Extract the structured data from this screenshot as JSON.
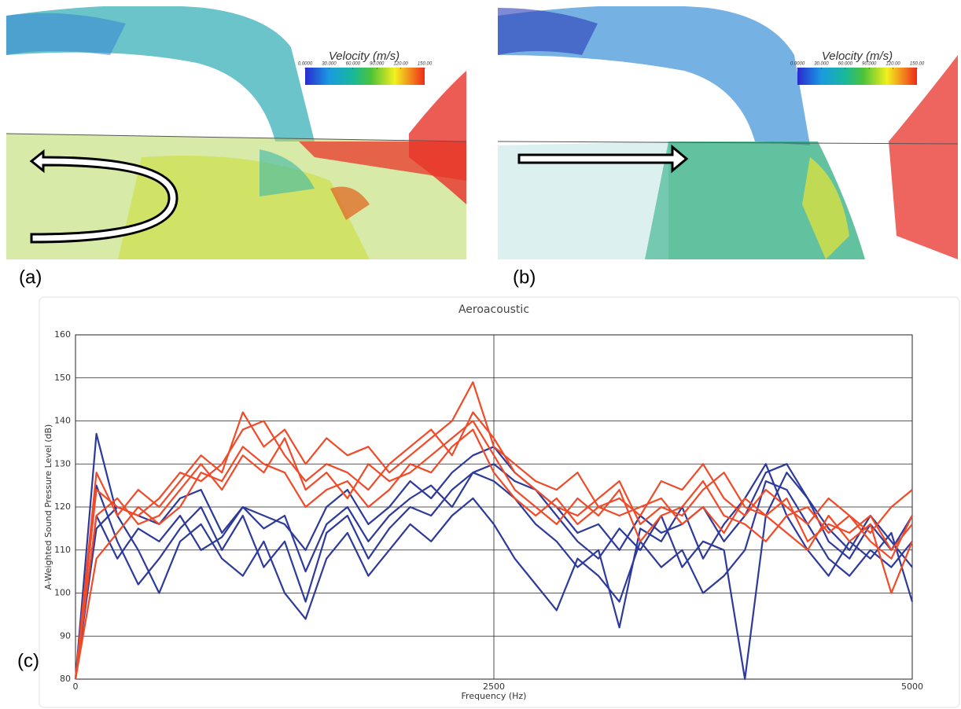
{
  "panels": [
    {
      "label": "(a)",
      "colorbar": {
        "title": "Velocity (m/s)",
        "ticks": [
          {
            "value": 0,
            "label": "0.0000"
          },
          {
            "value": 30,
            "label": "30.000"
          },
          {
            "value": 60,
            "label": "60.000"
          },
          {
            "value": 90,
            "label": "90.000"
          },
          {
            "value": 120,
            "label": "120.00"
          },
          {
            "value": 150,
            "label": "150.00"
          }
        ]
      }
    },
    {
      "label": "(b)",
      "colorbar": {
        "title": "Velocity (m/s)",
        "ticks": [
          {
            "value": 0,
            "label": "0.0000"
          },
          {
            "value": 30,
            "label": "30.000"
          },
          {
            "value": 60,
            "label": "60.000"
          },
          {
            "value": 90,
            "label": "90.000"
          },
          {
            "value": 120,
            "label": "120.00"
          },
          {
            "value": 150,
            "label": "150.00"
          }
        ]
      }
    }
  ],
  "chart_data": {
    "type": "line",
    "label": "(c)",
    "title": "Aeroacoustic",
    "x_label": "Frequency (Hz)",
    "y_label": "A-Weighted Sound Pressure Level (dB)",
    "x": [
      0,
      125,
      250,
      375,
      500,
      625,
      750,
      875,
      1000,
      1125,
      1250,
      1375,
      1500,
      1625,
      1750,
      1875,
      2000,
      2125,
      2250,
      2375,
      2500,
      2625,
      2750,
      2875,
      3000,
      3125,
      3250,
      3375,
      3500,
      3625,
      3750,
      3875,
      4000,
      4125,
      4250,
      4375,
      4500,
      4625,
      4750,
      4875,
      5000
    ],
    "series": [
      {
        "color": "#2d3a9c",
        "values": [
          80,
          118,
          108,
          115,
          112,
          118,
          110,
          113,
          120,
          115,
          118,
          105,
          116,
          120,
          112,
          118,
          122,
          125,
          120,
          128,
          130,
          126,
          124,
          118,
          112,
          108,
          115,
          110,
          118,
          106,
          112,
          110,
          80,
          118,
          128,
          122,
          115,
          110,
          118,
          112,
          106
        ]
      },
      {
        "color": "#2d3a9c",
        "values": [
          80,
          125,
          112,
          102,
          108,
          115,
          120,
          110,
          118,
          106,
          112,
          98,
          114,
          118,
          108,
          115,
          120,
          118,
          124,
          128,
          126,
          122,
          116,
          112,
          106,
          110,
          92,
          115,
          112,
          120,
          108,
          116,
          122,
          130,
          118,
          110,
          104,
          112,
          108,
          114,
          98
        ]
      },
      {
        "color": "#2d3a9c",
        "values": [
          80,
          137,
          118,
          110,
          100,
          112,
          116,
          108,
          104,
          112,
          100,
          94,
          108,
          114,
          104,
          110,
          116,
          112,
          118,
          122,
          116,
          108,
          102,
          96,
          108,
          104,
          98,
          112,
          106,
          110,
          100,
          104,
          110,
          126,
          124,
          116,
          108,
          104,
          110,
          106,
          112
        ]
      },
      {
        "color": "#2d3a9c",
        "values": [
          80,
          115,
          120,
          118,
          116,
          122,
          124,
          114,
          120,
          118,
          116,
          110,
          120,
          124,
          116,
          120,
          126,
          122,
          128,
          132,
          134,
          128,
          124,
          120,
          114,
          116,
          110,
          118,
          114,
          116,
          120,
          112,
          118,
          128,
          130,
          122,
          112,
          108,
          116,
          110,
          118
        ]
      },
      {
        "color": "#f04a28",
        "values": [
          80,
          128,
          118,
          124,
          120,
          126,
          132,
          128,
          142,
          134,
          138,
          130,
          136,
          132,
          134,
          128,
          132,
          136,
          140,
          149,
          134,
          130,
          126,
          124,
          128,
          120,
          122,
          118,
          126,
          124,
          130,
          122,
          118,
          124,
          120,
          116,
          122,
          118,
          114,
          120,
          124
        ]
      },
      {
        "color": "#f04a28",
        "values": [
          80,
          124,
          120,
          118,
          122,
          128,
          126,
          130,
          138,
          140,
          132,
          126,
          130,
          128,
          124,
          130,
          134,
          138,
          132,
          142,
          136,
          128,
          124,
          120,
          118,
          122,
          126,
          116,
          120,
          118,
          124,
          128,
          120,
          118,
          122,
          112,
          116,
          114,
          118,
          110,
          116
        ]
      },
      {
        "color": "#f04a28",
        "values": [
          80,
          118,
          122,
          116,
          118,
          124,
          130,
          124,
          132,
          128,
          136,
          124,
          128,
          122,
          130,
          126,
          128,
          132,
          136,
          140,
          132,
          124,
          120,
          116,
          122,
          118,
          124,
          112,
          118,
          120,
          126,
          118,
          116,
          112,
          118,
          120,
          114,
          118,
          112,
          108,
          118
        ]
      },
      {
        "color": "#f04a28",
        "values": [
          80,
          108,
          114,
          120,
          116,
          120,
          128,
          126,
          134,
          130,
          128,
          120,
          124,
          126,
          120,
          124,
          130,
          128,
          134,
          138,
          128,
          122,
          118,
          122,
          116,
          120,
          118,
          120,
          122,
          116,
          120,
          114,
          122,
          118,
          114,
          110,
          118,
          112,
          116,
          100,
          112
        ]
      }
    ],
    "xlim": [
      0,
      5000
    ],
    "ylim": [
      80,
      160
    ],
    "xticks": [
      0,
      2500,
      5000
    ],
    "yticks": [
      80,
      90,
      100,
      110,
      120,
      130,
      140,
      150,
      160
    ],
    "grid": true
  }
}
